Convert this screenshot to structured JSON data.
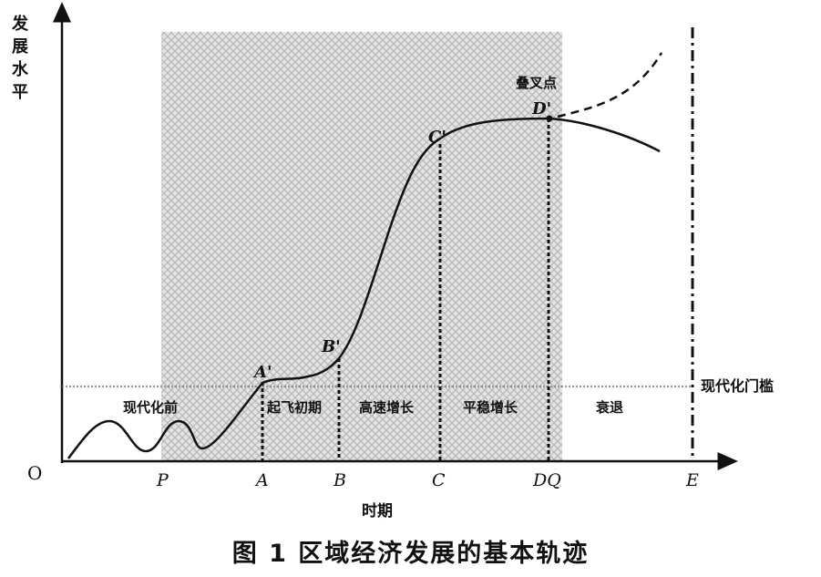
{
  "figure": {
    "caption": "图 1   区域经济发展的基本轨迹",
    "y_axis_label": [
      "发",
      "展",
      "水",
      "平"
    ],
    "x_axis_label": "时期",
    "origin_label": "O",
    "x_ticks": [
      "P",
      "A",
      "B",
      "C",
      "DQ",
      "E"
    ],
    "threshold_label": "现代化门槛",
    "stages": [
      "现代化前",
      "起飞初期",
      "高速增长",
      "平稳增长",
      "衰退"
    ],
    "points": [
      "A'",
      "B'",
      "C'",
      "D'"
    ],
    "bifurcation_label": "叠叉点"
  },
  "colors": {
    "ink": "#111111",
    "shade": "#b8b8b8",
    "threshold": "#777777"
  }
}
